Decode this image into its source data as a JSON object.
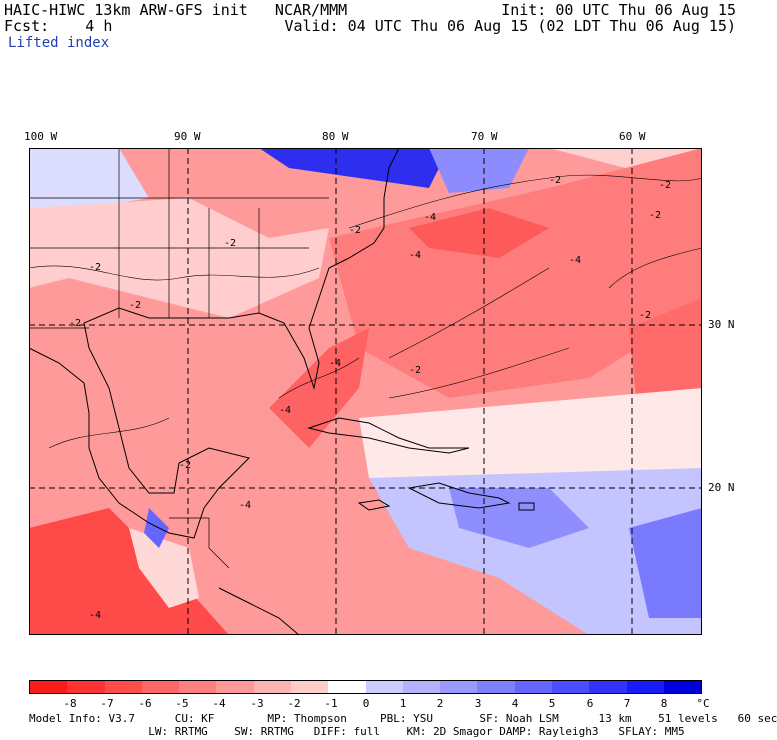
{
  "header": {
    "line1_left": "HAIC-HIWC 13km ARW-GFS init   NCAR/MMM",
    "line1_right": "Init: 00 UTC Thu 06 Aug 15",
    "line2_left": "Fcst:    4 h",
    "line2_right": "Valid: 04 UTC Thu 06 Aug 15 (02 LDT Thu 06 Aug 15)",
    "field_name": "Lifted index"
  },
  "map": {
    "lon_labels": [
      "100 W",
      "90 W",
      "80 W",
      "70 W",
      "60 W"
    ],
    "lat_labels": [
      "30 N",
      "20 N"
    ],
    "contour_labels": [
      "-2",
      "-4",
      "-2",
      "-4",
      "-2",
      "-2",
      "-2",
      "-4",
      "-2",
      "-2",
      "-4",
      "-4",
      "-2",
      "-2",
      "-2",
      "-4",
      "-2",
      "-4"
    ]
  },
  "colorbar": {
    "labels": [
      "-8",
      "-7",
      "-6",
      "-5",
      "-4",
      "-3",
      "-2",
      "-1",
      "0",
      "1",
      "2",
      "3",
      "4",
      "5",
      "6",
      "7",
      "8",
      "°C"
    ],
    "colors": [
      "#ff1a1a",
      "#ff3333",
      "#ff4d4d",
      "#ff6666",
      "#ff8080",
      "#ff9999",
      "#ffb3b3",
      "#ffcccc",
      "#ffffff",
      "#ccccff",
      "#b3b3ff",
      "#9999ff",
      "#8080ff",
      "#6666ff",
      "#4d4dff",
      "#3333ff",
      "#1a1aff",
      "#0000dd"
    ]
  },
  "model_info": {
    "line1": "Model Info: V3.7      CU: KF        MP: Thompson     PBL: YSU       SF: Noah LSM      13 km    51 levels   60 sec",
    "line2": "                  LW: RRTMG    SW: RRTMG   DIFF: full    KM: 2D Smagor DAMP: Rayleigh3   SFLAY: MM5"
  }
}
